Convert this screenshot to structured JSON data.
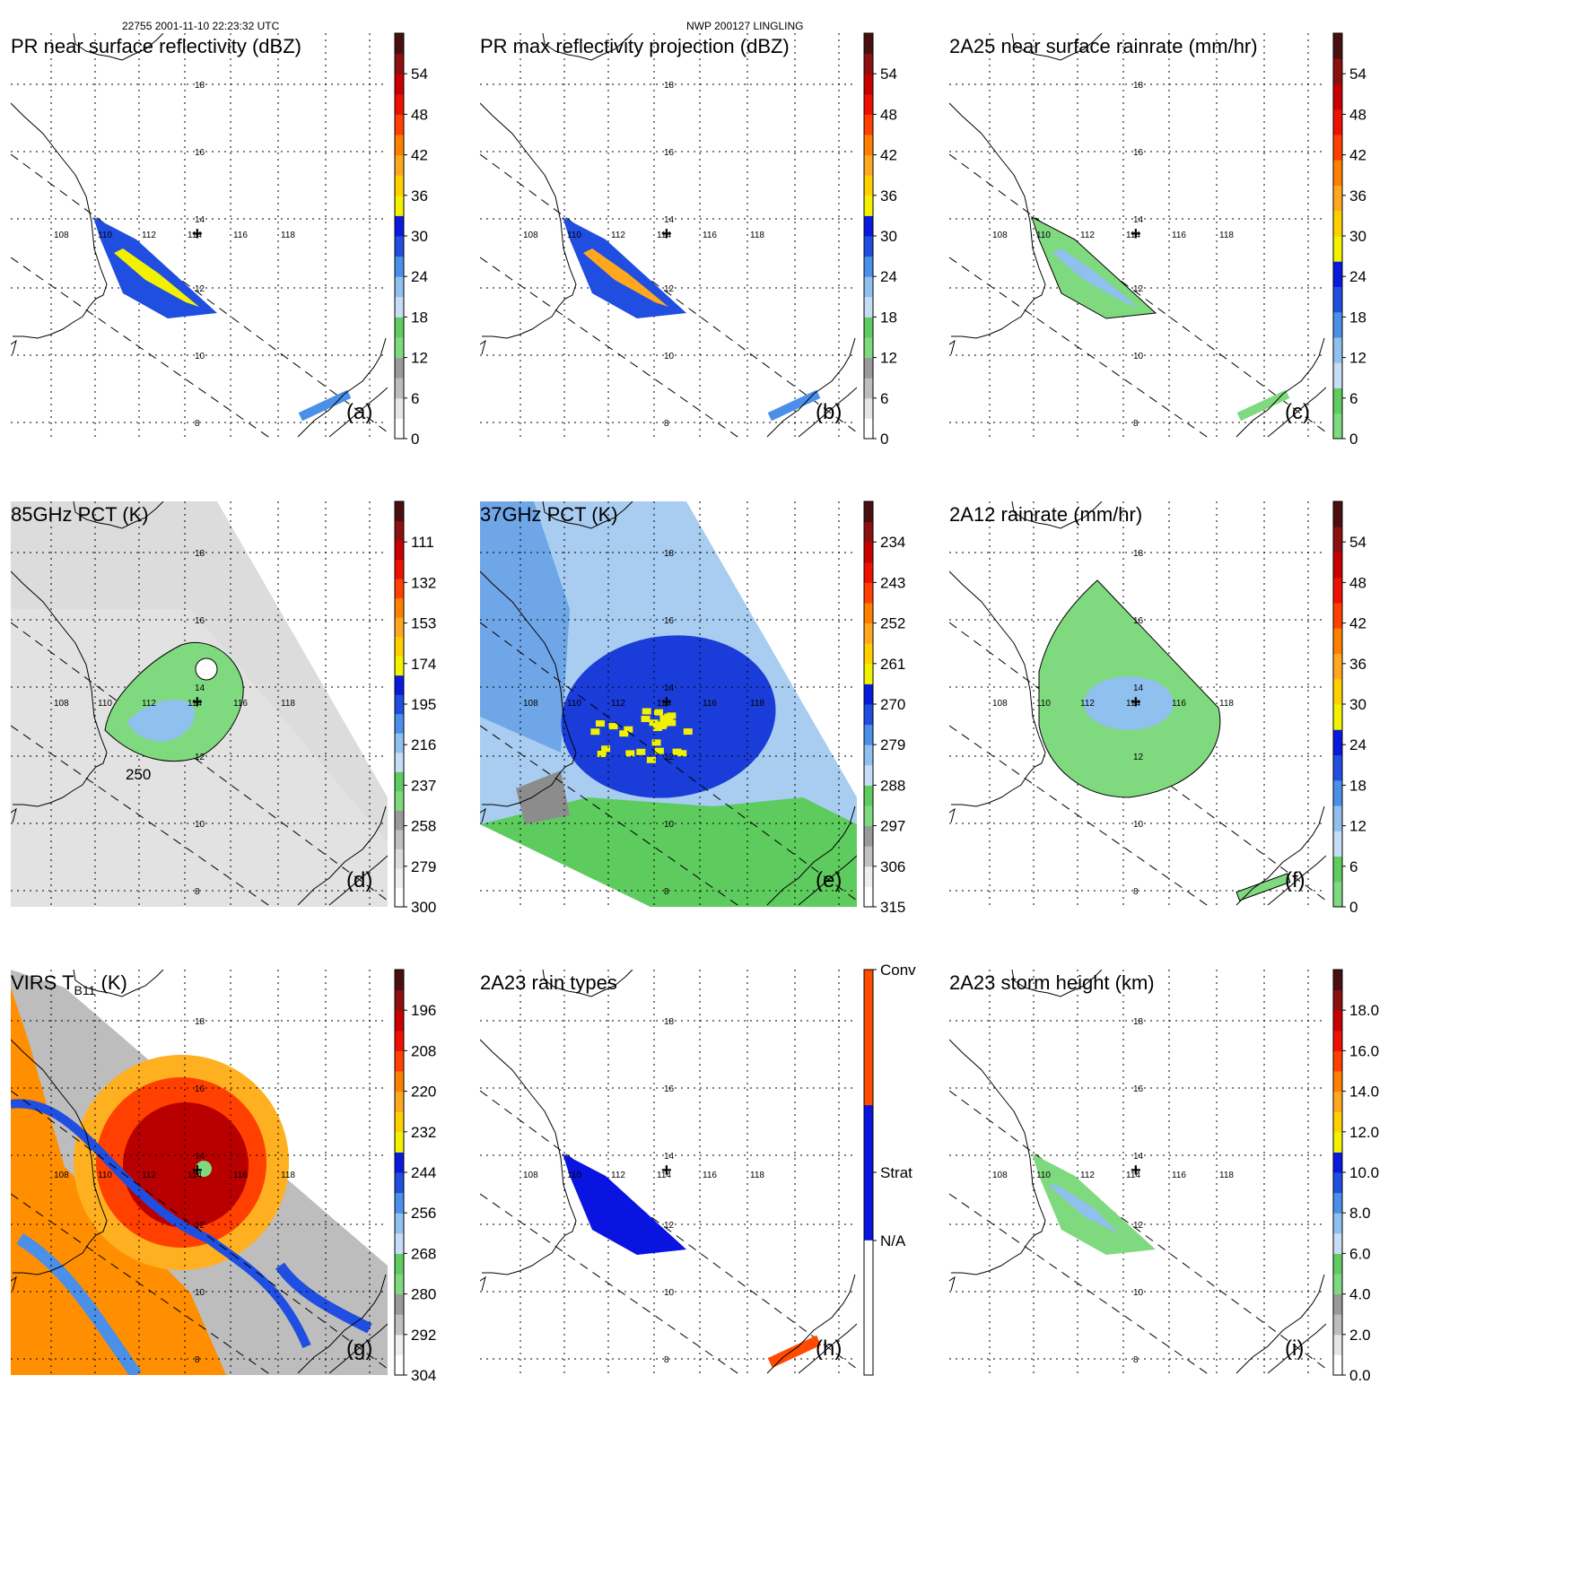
{
  "header": {
    "left": "22755 2001-11-10 22:23:32 UTC",
    "center": "NWP 200127 LINGLING"
  },
  "map_labels": {
    "lat": [
      "18",
      "16",
      "14",
      "12",
      "10",
      "8"
    ],
    "lon": [
      "108",
      "110",
      "112",
      "114",
      "116",
      "118"
    ]
  },
  "panels": [
    {
      "id": "a",
      "title": "PR near surface reflectivity (dBZ)",
      "label": "(a)",
      "field": "swath-narrow",
      "background": "none",
      "colorbar": {
        "ticks": [
          "0",
          "6",
          "12",
          "18",
          "24",
          "30",
          "36",
          "42",
          "48",
          "54"
        ],
        "colors": [
          "#ffffff",
          "#e6e6e6",
          "#bdbdbd",
          "#9a9a9a",
          "#7fd97f",
          "#5fcc5f",
          "#c7dcf5",
          "#8fc0ee",
          "#4a8fe8",
          "#1f4ee0",
          "#0a1adc",
          "#f2f200",
          "#ffd000",
          "#ffa81f",
          "#ff7f00",
          "#ff4000",
          "#ee1000",
          "#c80000",
          "#8c1010",
          "#4a0f0f"
        ]
      }
    },
    {
      "id": "b",
      "title": "PR max reflectivity projection (dBZ)",
      "label": "(b)",
      "field": "swath-narrow-max",
      "background": "none",
      "colorbar": {
        "ticks": [
          "0",
          "6",
          "12",
          "18",
          "24",
          "30",
          "36",
          "42",
          "48",
          "54"
        ],
        "colors": [
          "#ffffff",
          "#e6e6e6",
          "#bdbdbd",
          "#9a9a9a",
          "#7fd97f",
          "#5fcc5f",
          "#c7dcf5",
          "#8fc0ee",
          "#4a8fe8",
          "#1f4ee0",
          "#0a1adc",
          "#f2f200",
          "#ffd000",
          "#ffa81f",
          "#ff7f00",
          "#ff4000",
          "#ee1000",
          "#c80000",
          "#8c1010",
          "#4a0f0f"
        ]
      }
    },
    {
      "id": "c",
      "title": "2A25 near surface rainrate (mm/hr)",
      "label": "(c)",
      "field": "swath-narrow-rain",
      "background": "none",
      "colorbar": {
        "ticks": [
          "0",
          "6",
          "12",
          "18",
          "24",
          "30",
          "36",
          "42",
          "48",
          "54"
        ],
        "colors": [
          "#7fd97f",
          "#5fcc5f",
          "#c7dcf5",
          "#8fc0ee",
          "#4a8fe8",
          "#1f4ee0",
          "#0a1adc",
          "#f2f200",
          "#ffd000",
          "#ffa81f",
          "#ff7f00",
          "#ff4000",
          "#ee1000",
          "#c80000",
          "#8c1010",
          "#4a0f0f"
        ]
      }
    },
    {
      "id": "d",
      "title": "85GHz PCT (K)",
      "label": "(d)",
      "field": "pct85",
      "background": "gray-swath",
      "contour_label": "250",
      "colorbar": {
        "ticks": [
          "300",
          "279",
          "258",
          "237",
          "216",
          "195",
          "174",
          "153",
          "132",
          "111"
        ],
        "colors": [
          "#ffffff",
          "#eeeeee",
          "#dcdcdc",
          "#c0c0c0",
          "#9a9a9a",
          "#7fd97f",
          "#5fcc5f",
          "#c7dcf5",
          "#8fc0ee",
          "#4a8fe8",
          "#1f4ee0",
          "#0a1adc",
          "#f2f200",
          "#ffd000",
          "#ffa81f",
          "#ff7f00",
          "#ff4000",
          "#ee1000",
          "#c80000",
          "#8c1010",
          "#4a0f0f"
        ]
      }
    },
    {
      "id": "e",
      "title": "37GHz PCT (K)",
      "label": "(e)",
      "field": "pct37",
      "background": "blue-swath",
      "colorbar": {
        "ticks": [
          "315",
          "306",
          "297",
          "288",
          "279",
          "270",
          "261",
          "252",
          "243",
          "234"
        ],
        "colors": [
          "#ffffff",
          "#eeeeee",
          "#c0c0c0",
          "#9a9a9a",
          "#7fd97f",
          "#5fcc5f",
          "#c7dcf5",
          "#8fc0ee",
          "#4a8fe8",
          "#1f4ee0",
          "#0a1adc",
          "#f2f200",
          "#ffd000",
          "#ffa81f",
          "#ff7f00",
          "#ff4000",
          "#ee1000",
          "#c80000",
          "#8c1010",
          "#4a0f0f"
        ]
      }
    },
    {
      "id": "f",
      "title": "2A12 rainrate (mm/hr)",
      "label": "(f)",
      "field": "tmi-rain",
      "background": "none",
      "colorbar": {
        "ticks": [
          "0",
          "6",
          "12",
          "18",
          "24",
          "30",
          "36",
          "42",
          "48",
          "54"
        ],
        "colors": [
          "#7fd97f",
          "#5fcc5f",
          "#c7dcf5",
          "#8fc0ee",
          "#4a8fe8",
          "#1f4ee0",
          "#0a1adc",
          "#f2f200",
          "#ffd000",
          "#ffa81f",
          "#ff7f00",
          "#ff4000",
          "#ee1000",
          "#c80000",
          "#8c1010",
          "#4a0f0f"
        ]
      }
    },
    {
      "id": "g",
      "title": "VIRS T",
      "title_sub": "B11",
      "title_tail": " (K)",
      "label": "(g)",
      "field": "virs",
      "background": "virs-swath",
      "colorbar": {
        "ticks": [
          "304",
          "292",
          "280",
          "268",
          "256",
          "244",
          "232",
          "220",
          "208",
          "196"
        ],
        "colors": [
          "#ffffff",
          "#eeeeee",
          "#c0c0c0",
          "#9a9a9a",
          "#7fd97f",
          "#5fcc5f",
          "#c7dcf5",
          "#8fc0ee",
          "#4a8fe8",
          "#1f4ee0",
          "#0a1adc",
          "#f2f200",
          "#ffd000",
          "#ffa81f",
          "#ff7f00",
          "#ff4000",
          "#ee1000",
          "#c80000",
          "#8c1010",
          "#4a0f0f"
        ]
      }
    },
    {
      "id": "h",
      "title": "2A23 rain types",
      "label": "(h)",
      "field": "raintype",
      "background": "none",
      "colorbar": {
        "categorical": true,
        "ticks": [
          "N/A",
          "Strat",
          "Conv"
        ],
        "colors": [
          "#ffffff",
          "#0a14e0",
          "#ff4a00"
        ]
      }
    },
    {
      "id": "i",
      "title": "2A23 storm height (km)",
      "label": "(i)",
      "field": "stormheight",
      "background": "none",
      "colorbar": {
        "ticks": [
          "0.0",
          "2.0",
          "4.0",
          "6.0",
          "8.0",
          "10.0",
          "12.0",
          "14.0",
          "16.0",
          "18.0"
        ],
        "colors": [
          "#ffffff",
          "#e6e6e6",
          "#bdbdbd",
          "#9a9a9a",
          "#7fd97f",
          "#5fcc5f",
          "#c7dcf5",
          "#8fc0ee",
          "#4a8fe8",
          "#1f4ee0",
          "#0a1adc",
          "#f2f200",
          "#ffd000",
          "#ffa81f",
          "#ff7f00",
          "#ff4000",
          "#ee1000",
          "#c80000",
          "#8c1010",
          "#4a0f0f"
        ]
      }
    }
  ]
}
